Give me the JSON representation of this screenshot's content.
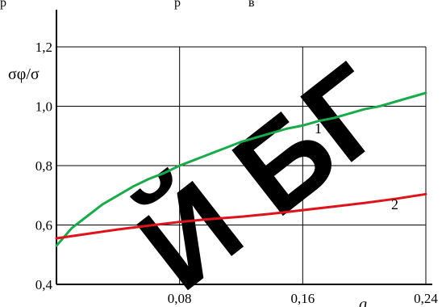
{
  "page": {
    "top_text": "р                                                    р                     в"
  },
  "watermark": {
    "text": "Й БГ",
    "color": "#e9e9e9"
  },
  "chart_data": {
    "type": "line",
    "ylabel": "σφ/σ",
    "xlabel": "q",
    "xlim": [
      0,
      0.24
    ],
    "ylim": [
      0.4,
      1.2
    ],
    "grid": true,
    "x_ticks": [
      "0,08",
      "0,16",
      "0,24"
    ],
    "y_ticks": [
      "0,4",
      "0,6",
      "0,8",
      "1,0",
      "1,2"
    ],
    "series": [
      {
        "name": "1",
        "color": "#1aaa4a",
        "x": [
          0,
          0.01,
          0.02,
          0.03,
          0.04,
          0.05,
          0.06,
          0.07,
          0.08,
          0.09,
          0.1,
          0.11,
          0.12,
          0.13,
          0.14,
          0.15,
          0.16,
          0.17,
          0.18,
          0.19,
          0.2,
          0.21,
          0.22,
          0.23,
          0.24
        ],
        "y": [
          0.53,
          0.59,
          0.63,
          0.67,
          0.7,
          0.73,
          0.755,
          0.775,
          0.8,
          0.82,
          0.84,
          0.86,
          0.88,
          0.895,
          0.91,
          0.925,
          0.935,
          0.95,
          0.96,
          0.975,
          0.99,
          1.0,
          1.015,
          1.03,
          1.045
        ]
      },
      {
        "name": "2",
        "color": "#e0121a",
        "x": [
          0,
          0.02,
          0.04,
          0.06,
          0.08,
          0.1,
          0.12,
          0.14,
          0.16,
          0.18,
          0.2,
          0.22,
          0.24
        ],
        "y": [
          0.555,
          0.57,
          0.585,
          0.598,
          0.61,
          0.62,
          0.628,
          0.638,
          0.65,
          0.662,
          0.674,
          0.688,
          0.704
        ]
      }
    ]
  }
}
